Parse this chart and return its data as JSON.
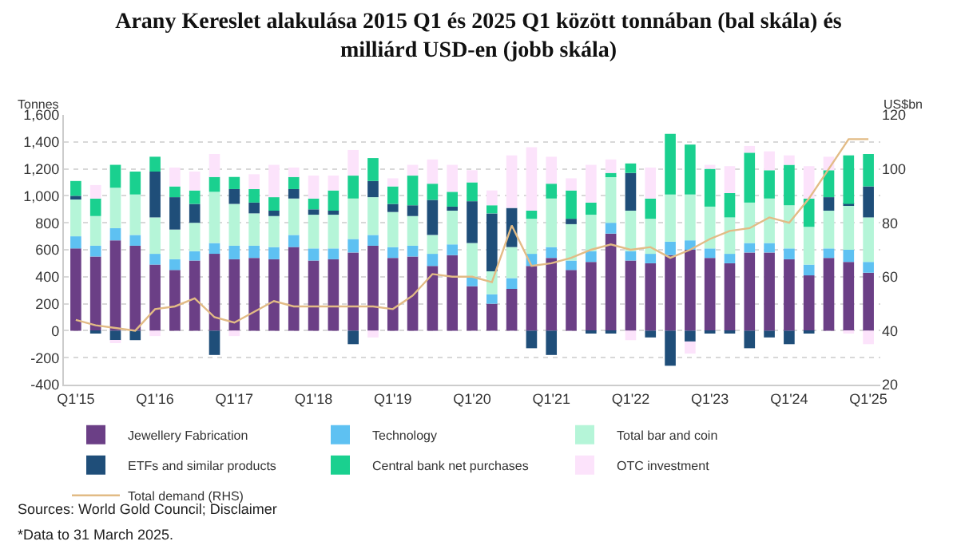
{
  "chart_data": {
    "type": "bar",
    "stacked": true,
    "title": "Arany Kereslet alakulása 2015 Q1 és 2025 Q1 között tonnában (bal skála) és milliárd USD-en (jobb skála)",
    "ylabel": "Tonnes",
    "y2label": "US$bn",
    "categories": [
      "Q1'15",
      null,
      null,
      null,
      "Q1'16",
      null,
      null,
      null,
      "Q1'17",
      null,
      null,
      null,
      "Q1'18",
      null,
      null,
      null,
      "Q1'19",
      null,
      null,
      null,
      "Q1'20",
      null,
      null,
      null,
      "Q1'21",
      null,
      null,
      null,
      "Q1'22",
      null,
      null,
      null,
      "Q1'23",
      null,
      null,
      null,
      "Q1'24",
      null,
      null,
      null,
      "Q1'25"
    ],
    "series": [
      {
        "name": "Jewellery Fabrication",
        "color": "#6b3f86",
        "values": [
          610,
          550,
          670,
          630,
          490,
          450,
          520,
          570,
          530,
          540,
          530,
          620,
          520,
          530,
          580,
          630,
          540,
          550,
          480,
          560,
          330,
          200,
          310,
          480,
          540,
          450,
          510,
          720,
          520,
          500,
          560,
          600,
          540,
          500,
          580,
          580,
          530,
          410,
          540,
          510,
          430
        ]
      },
      {
        "name": "Technology",
        "color": "#5ec1f2",
        "values": [
          90,
          80,
          90,
          80,
          80,
          80,
          70,
          80,
          100,
          90,
          90,
          90,
          90,
          80,
          100,
          80,
          80,
          80,
          90,
          80,
          70,
          70,
          80,
          90,
          80,
          70,
          80,
          80,
          70,
          70,
          100,
          70,
          70,
          70,
          70,
          70,
          80,
          80,
          70,
          90,
          80
        ]
      },
      {
        "name": "Total bar and coin",
        "color": "#b5f5d8",
        "values": [
          280,
          220,
          300,
          300,
          270,
          220,
          210,
          380,
          310,
          240,
          230,
          270,
          250,
          250,
          300,
          280,
          260,
          220,
          140,
          250,
          250,
          170,
          230,
          260,
          360,
          270,
          270,
          350,
          300,
          260,
          350,
          340,
          310,
          270,
          300,
          330,
          320,
          280,
          280,
          330,
          330
        ]
      },
      {
        "name": "ETFs and similar products",
        "color": "#1f4e79",
        "values": [
          20,
          -20,
          -70,
          -70,
          340,
          240,
          140,
          -180,
          110,
          80,
          40,
          70,
          40,
          30,
          -100,
          120,
          60,
          80,
          260,
          30,
          310,
          430,
          290,
          -130,
          -180,
          40,
          -20,
          -20,
          280,
          -50,
          -260,
          -80,
          -20,
          -20,
          -130,
          -50,
          -100,
          -20,
          100,
          10,
          230
        ]
      },
      {
        "name": "Central bank net purchases",
        "color": "#1ad08f",
        "values": [
          110,
          130,
          170,
          170,
          110,
          80,
          100,
          110,
          90,
          100,
          100,
          90,
          80,
          150,
          170,
          170,
          130,
          220,
          120,
          110,
          140,
          60,
          0,
          60,
          110,
          210,
          90,
          20,
          70,
          150,
          450,
          370,
          280,
          180,
          370,
          210,
          300,
          210,
          200,
          360,
          240
        ]
      },
      {
        "name": "OTC investment",
        "color": "#fce3fb",
        "values": [
          0,
          100,
          -20,
          0,
          -40,
          140,
          140,
          170,
          -40,
          110,
          240,
          70,
          170,
          110,
          190,
          -50,
          60,
          80,
          180,
          200,
          90,
          110,
          390,
          470,
          200,
          90,
          280,
          100,
          -70,
          230,
          0,
          -90,
          30,
          200,
          50,
          140,
          70,
          240,
          100,
          -20,
          -100
        ]
      },
      {
        "name": "Total demand (RHS)",
        "type": "line",
        "axis": "y2",
        "color": "#e2bb85",
        "marker": "none",
        "line_style": "solid",
        "values": [
          44,
          42,
          41,
          40,
          48,
          49,
          52,
          45,
          43,
          47,
          51,
          49,
          49,
          49,
          49,
          49,
          48,
          53,
          61,
          60,
          60,
          58,
          79,
          64,
          65,
          67,
          70,
          72,
          70,
          71,
          67,
          70,
          74,
          77,
          78,
          82,
          80,
          89,
          100,
          111,
          111
        ]
      }
    ],
    "ylim": [
      -400,
      1600
    ],
    "yticks": [
      -400,
      -200,
      0,
      200,
      400,
      600,
      800,
      {
        "value": 1000,
        "label": "1,000"
      },
      {
        "value": 1200,
        "label": "1,200"
      },
      {
        "value": 1400,
        "label": "1,400"
      },
      {
        "value": 1600,
        "label": "1,600"
      }
    ],
    "y2lim": [
      20,
      120
    ],
    "y2ticks": [
      20,
      40,
      60,
      80,
      100,
      120
    ],
    "grid": "y",
    "legend": "bottom",
    "annotations": [
      "Sources: World Gold Council; Disclaimer",
      "*Data to 31 March 2025."
    ]
  }
}
